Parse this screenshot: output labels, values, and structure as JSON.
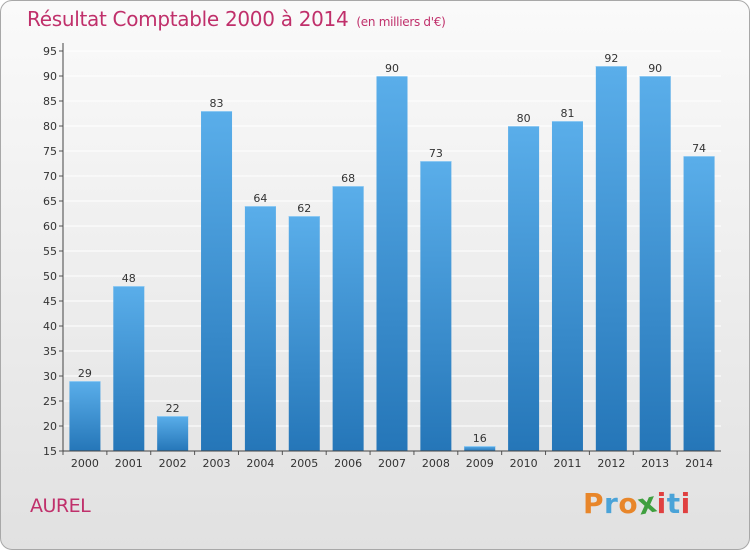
{
  "title": "Résultat Comptable 2000 à 2014",
  "subtitle": "(en milliers d'€)",
  "commune": "AUREL",
  "brand": {
    "text": "Proxiti",
    "letter_colors": [
      "#e8862a",
      "#4aa3d8",
      "#e8862a",
      "#3f9f3f",
      "#e04040",
      "#4aa3d8",
      "#e04040"
    ]
  },
  "colors": {
    "bar_top": "#5aaeea",
    "bar_bottom": "#2576b8",
    "title": "#c0306b",
    "axis_text": "#333333",
    "gridline": "#ffffff"
  },
  "chart_data": {
    "type": "bar",
    "categories": [
      "2000",
      "2001",
      "2002",
      "2003",
      "2004",
      "2005",
      "2006",
      "2007",
      "2008",
      "2009",
      "2010",
      "2011",
      "2012",
      "2013",
      "2014"
    ],
    "values": [
      29,
      48,
      22,
      83,
      64,
      62,
      68,
      90,
      73,
      16,
      80,
      81,
      92,
      90,
      74
    ],
    "ylim": [
      15,
      95
    ],
    "yticks": [
      15,
      20,
      25,
      30,
      35,
      40,
      45,
      50,
      55,
      60,
      65,
      70,
      75,
      80,
      85,
      90,
      95
    ],
    "grid": true,
    "xlabel": "",
    "ylabel": ""
  }
}
